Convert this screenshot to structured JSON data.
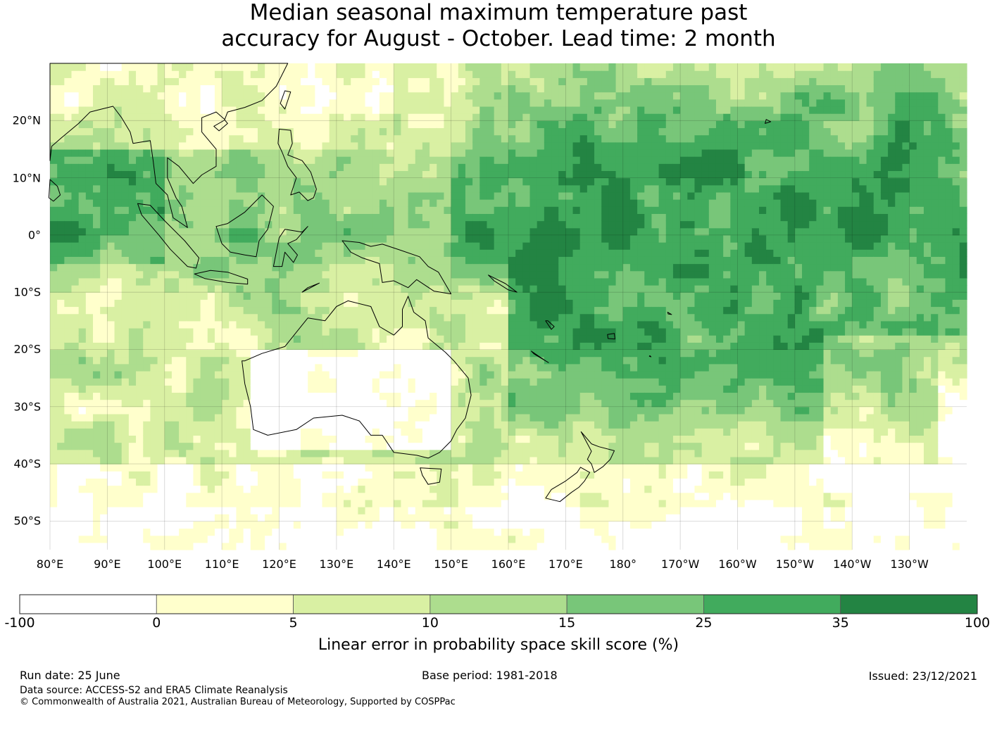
{
  "title": {
    "line1": "Median seasonal maximum temperature past",
    "line2": "accuracy for August - October. Lead time: 2 month"
  },
  "map": {
    "lon_labels": [
      "80°E",
      "90°E",
      "100°E",
      "110°E",
      "120°E",
      "130°E",
      "140°E",
      "150°E",
      "160°E",
      "170°E",
      "180°",
      "170°W",
      "160°W",
      "150°W",
      "140°W",
      "130°W"
    ],
    "lon_values": [
      80,
      90,
      100,
      110,
      120,
      130,
      140,
      150,
      160,
      170,
      180,
      190,
      200,
      210,
      220,
      230
    ],
    "lat_labels": [
      "20°N",
      "10°N",
      "0°",
      "10°S",
      "20°S",
      "30°S",
      "40°S",
      "50°S"
    ],
    "lat_values": [
      20,
      10,
      0,
      -10,
      -20,
      -30,
      -40,
      -50
    ],
    "lon_range": [
      80,
      240
    ],
    "lat_range": [
      -55,
      30
    ],
    "gridlines": true
  },
  "colorbar": {
    "ticks": [
      "-100",
      "0",
      "5",
      "10",
      "15",
      "25",
      "35",
      "100"
    ],
    "colors": [
      "#ffffff",
      "#ffffcc",
      "#d9f0a3",
      "#addd8e",
      "#78c679",
      "#41ab5d",
      "#238443"
    ],
    "label": "Linear error in probability space skill score (%)"
  },
  "footer": {
    "run_date": "Run date: 25 June",
    "base_period": "Base period: 1981-2018",
    "issued": "Issued: 23/12/2021",
    "data_source": "Data source: ACCESS-S2 and ERA5 Climate Reanalysis",
    "copyright": "© Commonwealth of Australia 2021, Australian Bureau of Meteorology, Supported by COSPPac"
  }
}
